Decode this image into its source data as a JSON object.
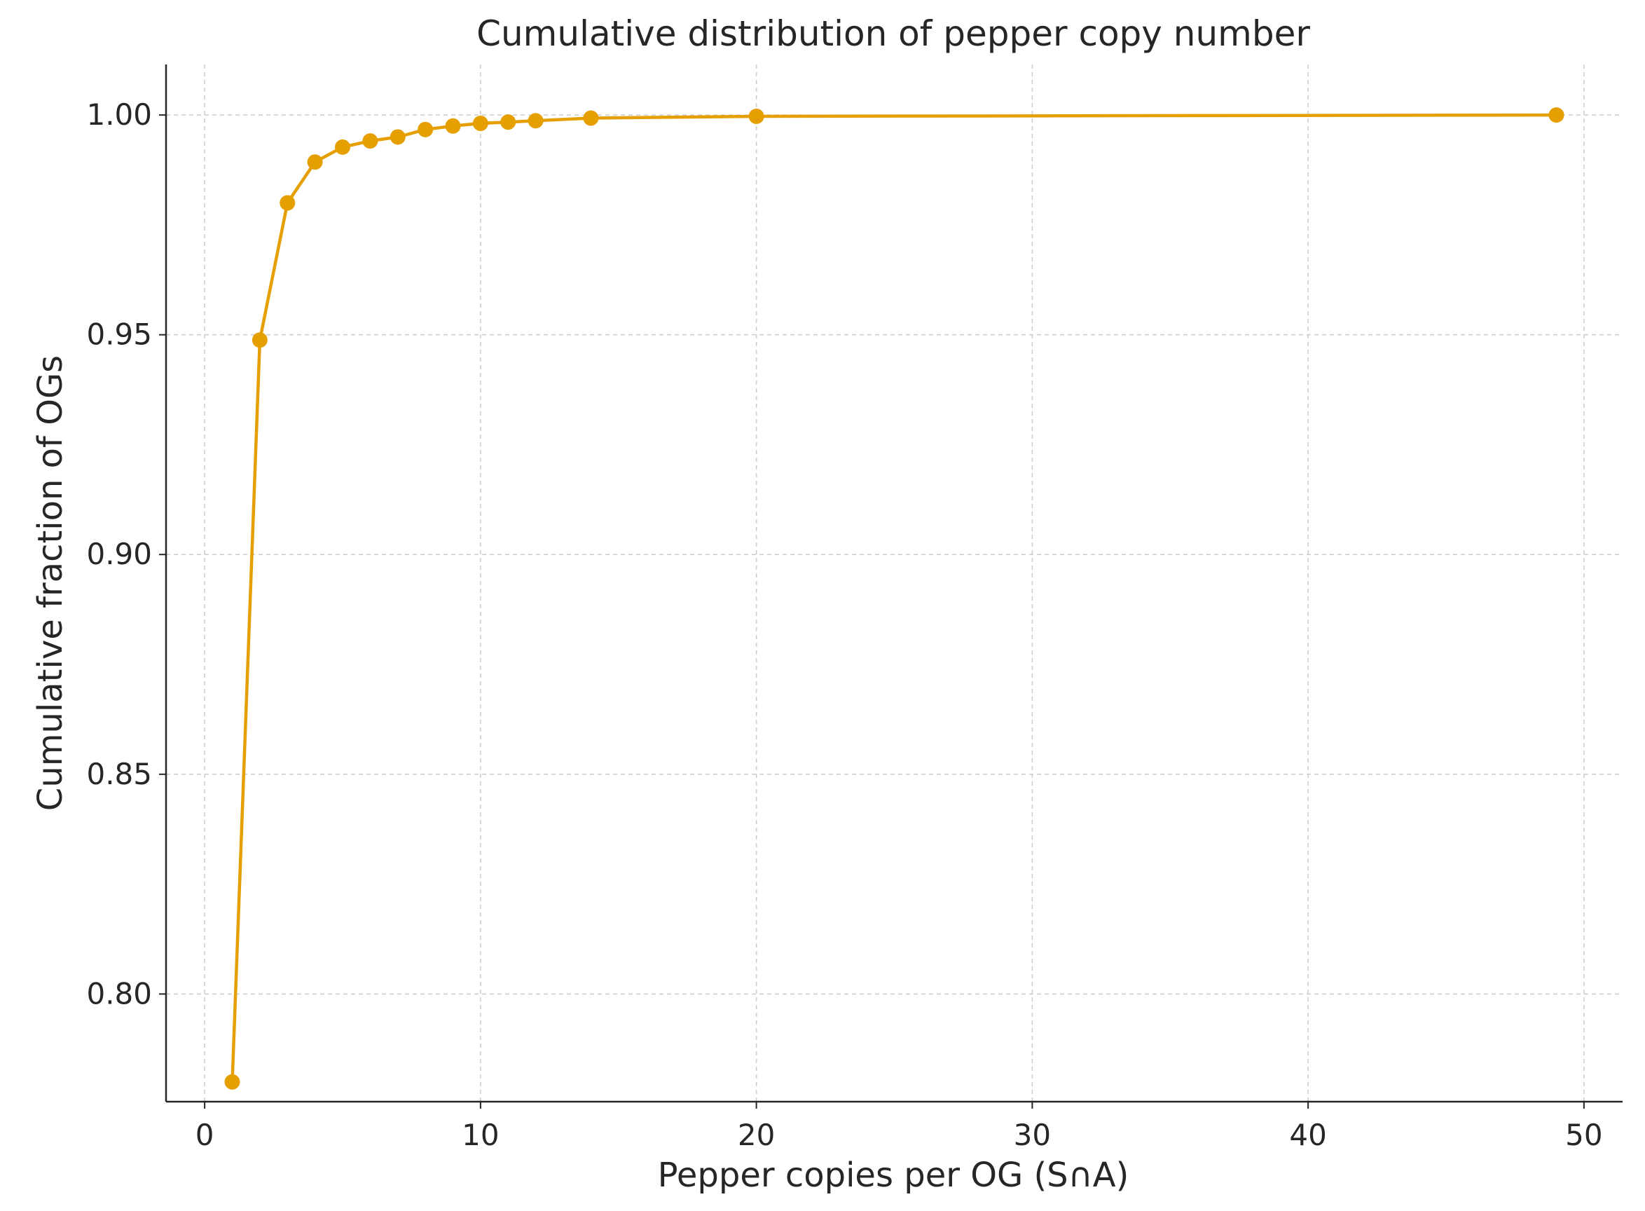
{
  "chart_data": {
    "type": "line",
    "title": "Cumulative distribution of pepper copy number",
    "xlabel": "Pepper copies per OG (S∩A)",
    "ylabel": "Cumulative fraction of OGs",
    "xlim": [
      -1.4,
      51.4
    ],
    "ylim": [
      0.7755,
      1.0115
    ],
    "xticks": [
      0,
      10,
      20,
      30,
      40,
      50
    ],
    "xtick_labels": [
      "0",
      "10",
      "20",
      "30",
      "40",
      "50"
    ],
    "yticks": [
      0.8,
      0.85,
      0.9,
      0.95,
      1.0
    ],
    "ytick_labels": [
      "0.80",
      "0.85",
      "0.90",
      "0.95",
      "1.00"
    ],
    "grid": true,
    "series": [
      {
        "color": "#E69F00",
        "x": [
          1,
          2,
          3,
          4,
          5,
          6,
          7,
          8,
          9,
          10,
          11,
          12,
          14,
          20,
          49
        ],
        "y": [
          0.78,
          0.9488,
          0.98,
          0.9893,
          0.9927,
          0.9941,
          0.995,
          0.9967,
          0.9975,
          0.9981,
          0.9984,
          0.9987,
          0.9993,
          0.9997,
          1.0
        ]
      }
    ]
  }
}
